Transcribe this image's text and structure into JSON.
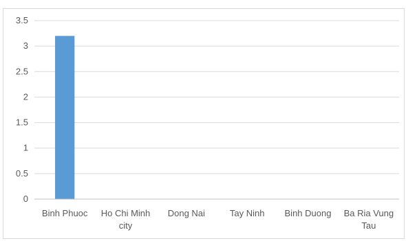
{
  "chart_data": {
    "type": "bar",
    "categories": [
      [
        "Binh Phuoc"
      ],
      [
        "Ho Chi Minh",
        "city"
      ],
      [
        "Dong Nai"
      ],
      [
        "Tay Ninh"
      ],
      [
        "Binh Duong"
      ],
      [
        "Ba Ria Vung",
        "Tau"
      ]
    ],
    "values": [
      3.2,
      0,
      0,
      0,
      0,
      0
    ],
    "ylim": [
      0,
      3.5
    ],
    "yticks": [
      "0",
      "0.5",
      "1",
      "1.5",
      "2",
      "2.5",
      "3",
      "3.5"
    ],
    "title": "",
    "xlabel": "",
    "ylabel": "",
    "grid": true,
    "legend": "none",
    "bar_color": "#5b9bd5"
  }
}
